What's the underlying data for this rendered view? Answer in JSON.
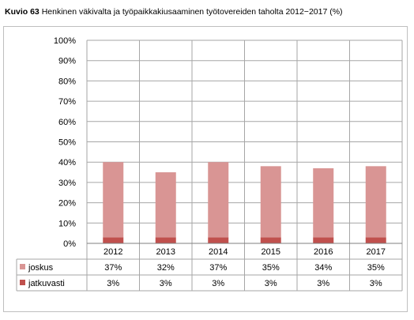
{
  "figure": {
    "label": "Kuvio 63",
    "caption": "Henkinen väkivalta ja työpaikkakiusaaminen työtovereiden taholta 2012−2017 (%)"
  },
  "chart_data": {
    "type": "bar",
    "stacked": true,
    "categories": [
      "2012",
      "2013",
      "2014",
      "2015",
      "2016",
      "2017"
    ],
    "series": [
      {
        "name": "joskus",
        "values": [
          37,
          32,
          37,
          35,
          34,
          35
        ],
        "labels": [
          "37%",
          "32%",
          "37%",
          "35%",
          "34%",
          "35%"
        ],
        "color": "#d99594"
      },
      {
        "name": "jatkuvasti",
        "values": [
          3,
          3,
          3,
          3,
          3,
          3
        ],
        "labels": [
          "3%",
          "3%",
          "3%",
          "3%",
          "3%",
          "3%"
        ],
        "color": "#c0504d"
      }
    ],
    "ylim": [
      0,
      100
    ],
    "yticks": [
      0,
      10,
      20,
      30,
      40,
      50,
      60,
      70,
      80,
      90,
      100
    ],
    "ytick_labels": [
      "0%",
      "10%",
      "20%",
      "30%",
      "40%",
      "50%",
      "60%",
      "70%",
      "80%",
      "90%",
      "100%"
    ],
    "grid": true,
    "legend": "data-table"
  }
}
